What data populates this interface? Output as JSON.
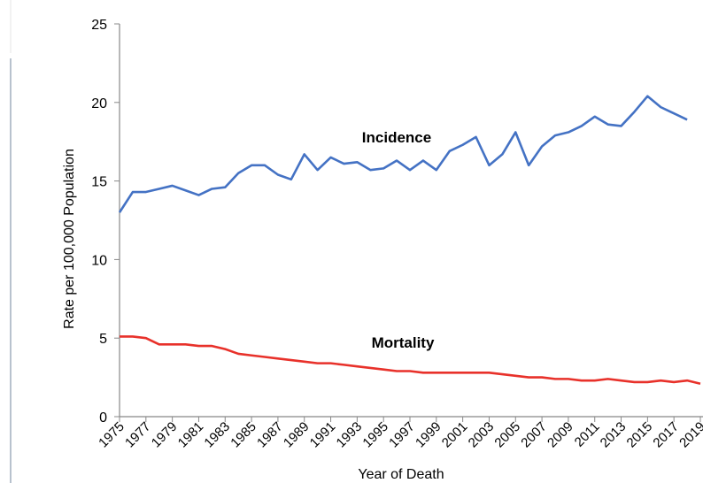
{
  "chart_data": {
    "type": "line",
    "x": [
      1975,
      1976,
      1977,
      1978,
      1979,
      1980,
      1981,
      1982,
      1983,
      1984,
      1985,
      1986,
      1987,
      1988,
      1989,
      1990,
      1991,
      1992,
      1993,
      1994,
      1995,
      1996,
      1997,
      1998,
      1999,
      2000,
      2001,
      2002,
      2003,
      2004,
      2005,
      2006,
      2007,
      2008,
      2009,
      2010,
      2011,
      2012,
      2013,
      2014,
      2015,
      2016,
      2017,
      2018,
      2019
    ],
    "series": [
      {
        "name": "Incidence",
        "color": "#4472c4",
        "values": [
          13.0,
          14.3,
          14.3,
          14.5,
          14.7,
          14.4,
          14.1,
          14.5,
          14.6,
          15.5,
          16.0,
          16.0,
          15.4,
          15.1,
          16.7,
          15.7,
          16.5,
          16.1,
          16.2,
          15.7,
          15.8,
          16.3,
          15.7,
          16.3,
          15.7,
          16.9,
          17.3,
          17.8,
          16.0,
          16.7,
          18.1,
          16.0,
          17.2,
          17.9,
          18.1,
          18.5,
          19.1,
          18.6,
          18.5,
          19.4,
          20.4,
          19.7,
          19.3,
          18.9,
          null
        ]
      },
      {
        "name": "Mortality",
        "color": "#e8312a",
        "values": [
          5.1,
          5.1,
          5.0,
          4.6,
          4.6,
          4.6,
          4.5,
          4.5,
          4.3,
          4.0,
          3.9,
          3.8,
          3.7,
          3.6,
          3.5,
          3.4,
          3.4,
          3.3,
          3.2,
          3.1,
          3.0,
          2.9,
          2.9,
          2.8,
          2.8,
          2.8,
          2.8,
          2.8,
          2.8,
          2.7,
          2.6,
          2.5,
          2.5,
          2.4,
          2.4,
          2.3,
          2.3,
          2.4,
          2.3,
          2.2,
          2.2,
          2.3,
          2.2,
          2.3,
          2.1
        ]
      }
    ],
    "xlabel": "Year of Death",
    "ylabel": "Rate per 100,000 Population",
    "xlim": [
      1975,
      2019
    ],
    "xticks": [
      1975,
      1977,
      1979,
      1981,
      1983,
      1985,
      1987,
      1989,
      1991,
      1993,
      1995,
      1997,
      1999,
      2001,
      2003,
      2005,
      2007,
      2009,
      2011,
      2013,
      2015,
      2017,
      2019
    ],
    "ylim": [
      0,
      25
    ],
    "yticks": [
      0,
      5,
      10,
      15,
      20,
      25
    ],
    "grid": false
  }
}
